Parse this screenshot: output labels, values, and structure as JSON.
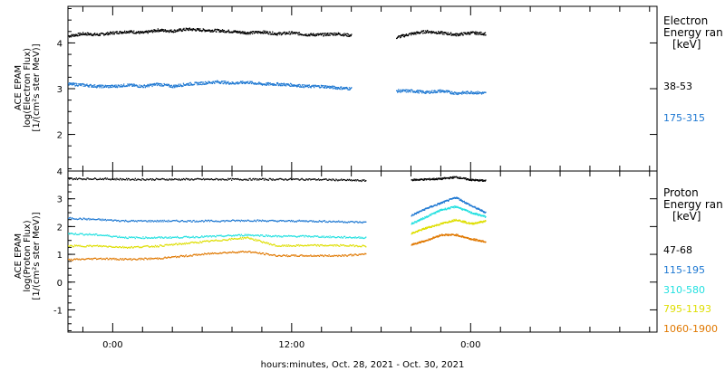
{
  "chart_data": [
    {
      "type": "scatter",
      "ylabel": [
        "ACE EPAM",
        "log(Electron Flux)",
        "[1/(cm²s ster MeV)]"
      ],
      "ylim": [
        1.2,
        4.8
      ],
      "yticks": [
        "2",
        "3",
        "4"
      ],
      "legend_title": [
        "Electron",
        "Energy ran",
        "[keV]"
      ],
      "series": [
        {
          "name": "38-53",
          "color": "#000000",
          "x": [
            -3,
            -2,
            -1,
            0,
            1,
            2,
            3,
            4,
            5,
            6,
            7,
            8,
            9,
            10,
            11,
            12,
            13,
            14,
            15,
            16,
            17,
            18,
            19,
            20,
            21,
            22,
            23,
            24,
            25,
            26
          ],
          "values": [
            4.15,
            4.2,
            4.18,
            4.22,
            4.25,
            4.22,
            4.28,
            4.26,
            4.3,
            4.28,
            4.27,
            4.25,
            4.22,
            4.24,
            4.2,
            4.22,
            4.18,
            4.18,
            4.2,
            4.16,
            null,
            null,
            4.12,
            4.2,
            4.25,
            4.22,
            4.18,
            4.22,
            4.2,
            null
          ]
        },
        {
          "name": "175-315",
          "color": "#1e78d2",
          "x": [
            -3,
            -2,
            -1,
            0,
            1,
            2,
            3,
            4,
            5,
            6,
            7,
            8,
            9,
            10,
            11,
            12,
            13,
            14,
            15,
            16,
            17,
            18,
            19,
            20,
            21,
            22,
            23,
            24,
            25,
            26
          ],
          "values": [
            3.1,
            3.08,
            3.05,
            3.05,
            3.08,
            3.05,
            3.1,
            3.05,
            3.1,
            3.12,
            3.15,
            3.12,
            3.14,
            3.1,
            3.1,
            3.08,
            3.05,
            3.05,
            3.02,
            3.0,
            null,
            null,
            2.95,
            2.95,
            2.92,
            2.95,
            2.9,
            2.92,
            2.9,
            null
          ]
        }
      ]
    },
    {
      "type": "scatter",
      "ylabel": [
        "ACE EPAM",
        "log(Proton Flux)",
        "[1/(cm²s ster MeV)]"
      ],
      "ylim": [
        -1.8,
        4.0
      ],
      "yticks": [
        "-1",
        "0",
        "1",
        "2",
        "3",
        "4"
      ],
      "legend_title": [
        "Proton",
        "Energy ran",
        "[keV]"
      ],
      "series": [
        {
          "name": "47-68",
          "color": "#000000",
          "x": [
            -3,
            -1,
            1,
            3,
            5,
            7,
            9,
            11,
            13,
            15,
            17,
            19,
            20,
            21,
            22,
            23,
            24,
            25
          ],
          "values": [
            3.72,
            3.72,
            3.7,
            3.7,
            3.7,
            3.7,
            3.7,
            3.7,
            3.7,
            3.68,
            3.65,
            null,
            3.68,
            3.7,
            3.72,
            3.78,
            3.68,
            3.65
          ]
        },
        {
          "name": "115-195",
          "color": "#1e78d2",
          "x": [
            -3,
            -1,
            1,
            3,
            5,
            7,
            9,
            11,
            13,
            15,
            17,
            19,
            20,
            21,
            22,
            23,
            24,
            25
          ],
          "values": [
            2.3,
            2.25,
            2.2,
            2.2,
            2.2,
            2.2,
            2.22,
            2.2,
            2.2,
            2.18,
            2.15,
            null,
            2.4,
            2.65,
            2.85,
            3.05,
            2.75,
            2.5
          ]
        },
        {
          "name": "310-580",
          "color": "#22e0e0",
          "x": [
            -3,
            -1,
            1,
            3,
            5,
            7,
            9,
            11,
            13,
            15,
            17,
            19,
            20,
            21,
            22,
            23,
            24,
            25
          ],
          "values": [
            1.75,
            1.7,
            1.6,
            1.6,
            1.62,
            1.65,
            1.7,
            1.65,
            1.65,
            1.62,
            1.6,
            null,
            2.1,
            2.35,
            2.6,
            2.72,
            2.5,
            2.35
          ]
        },
        {
          "name": "795-1193",
          "color": "#dede00",
          "x": [
            -3,
            -1,
            1,
            3,
            5,
            7,
            9,
            11,
            13,
            15,
            17,
            19,
            20,
            21,
            22,
            23,
            24,
            25
          ],
          "values": [
            1.3,
            1.3,
            1.25,
            1.3,
            1.4,
            1.5,
            1.6,
            1.3,
            1.32,
            1.32,
            1.3,
            null,
            1.75,
            1.95,
            2.1,
            2.25,
            2.1,
            2.2
          ]
        },
        {
          "name": "1060-1900",
          "color": "#e07800",
          "x": [
            -3,
            -1,
            1,
            3,
            5,
            7,
            9,
            11,
            13,
            15,
            17,
            19,
            20,
            21,
            22,
            23,
            24,
            25
          ],
          "values": [
            0.8,
            0.85,
            0.82,
            0.85,
            0.95,
            1.05,
            1.1,
            0.95,
            0.95,
            0.95,
            1.0,
            null,
            1.35,
            1.5,
            1.7,
            1.7,
            1.55,
            1.45
          ]
        }
      ]
    }
  ],
  "xaxis": {
    "xlim": [
      -3,
      36.5
    ],
    "tick_hours": [
      0,
      12,
      24
    ],
    "tick_labels": [
      "0:00",
      "12:00",
      "0:00"
    ],
    "minor_step_hours": 2,
    "xlabel": "hours:minutes, Oct. 28, 2021 - Oct. 30, 2021"
  }
}
